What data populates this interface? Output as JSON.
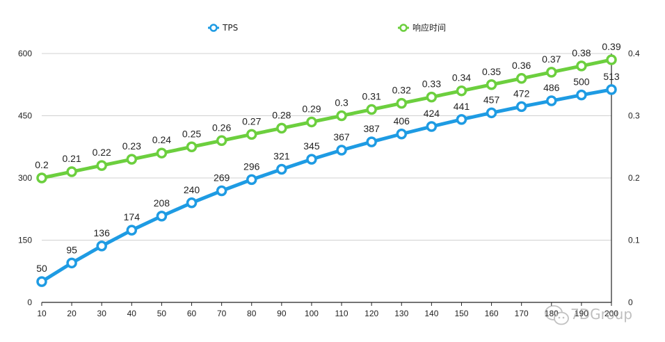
{
  "chart_data": {
    "type": "line",
    "x": [
      10,
      20,
      30,
      40,
      50,
      60,
      70,
      80,
      90,
      100,
      110,
      120,
      130,
      140,
      150,
      160,
      170,
      180,
      190,
      200
    ],
    "x_tick_labels": [
      "10",
      "20",
      "30",
      "40",
      "50",
      "60",
      "70",
      "80",
      "90",
      "100",
      "110",
      "120",
      "130",
      "140",
      "150",
      "160",
      "170",
      "180",
      "190",
      "200"
    ],
    "series": [
      {
        "name": "TPS",
        "axis": "left",
        "color": "#1e9be3",
        "values": [
          50,
          95,
          136,
          174,
          208,
          240,
          269,
          296,
          321,
          345,
          367,
          387,
          406,
          424,
          441,
          457,
          472,
          486,
          500,
          513
        ]
      },
      {
        "name": "响应时间",
        "axis": "right",
        "color": "#6ccf3e",
        "values": [
          0.2,
          0.21,
          0.22,
          0.23,
          0.24,
          0.25,
          0.26,
          0.27,
          0.28,
          0.29,
          0.3,
          0.31,
          0.32,
          0.33,
          0.34,
          0.35,
          0.36,
          0.37,
          0.38,
          0.39
        ],
        "labels": [
          "0.2",
          "0.21",
          "0.22",
          "0.23",
          "0.24",
          "0.25",
          "0.26",
          "0.27",
          "0.28",
          "0.29",
          "0.3",
          "0.31",
          "0.32",
          "0.33",
          "0.34",
          "0.35",
          "0.36",
          "0.37",
          "0.38",
          "0.39"
        ]
      }
    ],
    "y_left": {
      "ylim": [
        0,
        600
      ],
      "ticks": [
        0,
        150,
        300,
        450,
        600
      ],
      "tick_labels": [
        "0",
        "150",
        "300",
        "450",
        "600"
      ]
    },
    "y_right": {
      "ylim": [
        0,
        0.4
      ],
      "ticks": [
        0,
        0.1,
        0.2,
        0.3,
        0.4
      ],
      "tick_labels": [
        "0",
        "0.1",
        "0.2",
        "0.3",
        "0.4"
      ]
    },
    "grid": "horizontal",
    "legend": "top-center",
    "watermark": "7DGroup",
    "title": "",
    "xlabel": "",
    "ylabel": ""
  }
}
